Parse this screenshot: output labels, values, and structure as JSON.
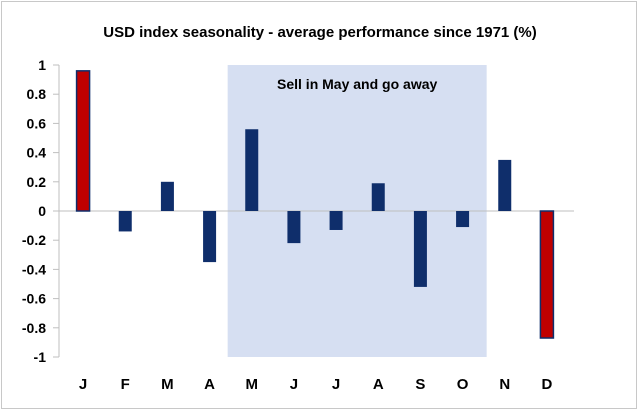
{
  "chart_data": {
    "type": "bar",
    "title": "USD index seasonality - average performance since 1971 (%)",
    "categories": [
      "J",
      "F",
      "M",
      "A",
      "M",
      "J",
      "J",
      "A",
      "S",
      "O",
      "N",
      "D"
    ],
    "values": [
      0.96,
      -0.14,
      0.2,
      -0.35,
      0.56,
      -0.22,
      -0.13,
      0.19,
      -0.52,
      -0.11,
      0.35,
      -0.87
    ],
    "highlighted_indices": [
      0,
      11
    ],
    "ylim": [
      -1,
      1
    ],
    "yticks": [
      1,
      0.8,
      0.6,
      0.4,
      0.2,
      0,
      -0.2,
      -0.4,
      -0.6,
      -0.8,
      -1
    ],
    "ytick_labels": [
      "1",
      "0.8",
      "0.6",
      "0.4",
      "0.2",
      "0",
      "-0.2",
      "-0.4",
      "-0.6",
      "-0.8",
      "-1"
    ],
    "shaded_region": {
      "from_category_index": 4,
      "to_category_index": 9,
      "label": "Sell in May and go away"
    },
    "colors": {
      "bar": "#0f2e6b",
      "highlight_bar": "#c00000",
      "shade": "#d6dff2",
      "axis": "#bfbfbf"
    },
    "xlabel": "",
    "ylabel": ""
  }
}
